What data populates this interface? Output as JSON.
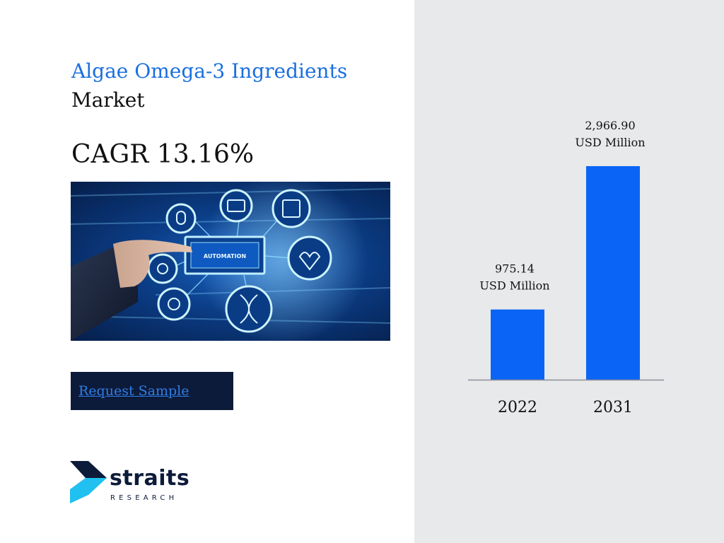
{
  "header": {
    "title_line1": "Algae Omega-3 Ingredients",
    "title_line2": "Market",
    "cagr": "CAGR 13.16%"
  },
  "hero_image": {
    "center_label": "AUTOMATION"
  },
  "cta": {
    "request_label": "Request Sample"
  },
  "logo": {
    "word": "straits",
    "sub": "RESEARCH"
  },
  "colors": {
    "accent": "#1a6fe0",
    "bar": "#0a64f5",
    "panel_bg": "#e8e9eb",
    "button_bg": "#0d1b3a"
  },
  "chart_data": {
    "type": "bar",
    "categories": [
      "2022",
      "2031"
    ],
    "values": [
      975.14,
      2966.9
    ],
    "value_labels": [
      [
        "975.14",
        "USD Million"
      ],
      [
        "2,966.90",
        "USD Million"
      ]
    ],
    "title": "",
    "xlabel": "",
    "ylabel": "",
    "ylim": [
      0,
      3900
    ],
    "grid": false,
    "legend": "none"
  }
}
